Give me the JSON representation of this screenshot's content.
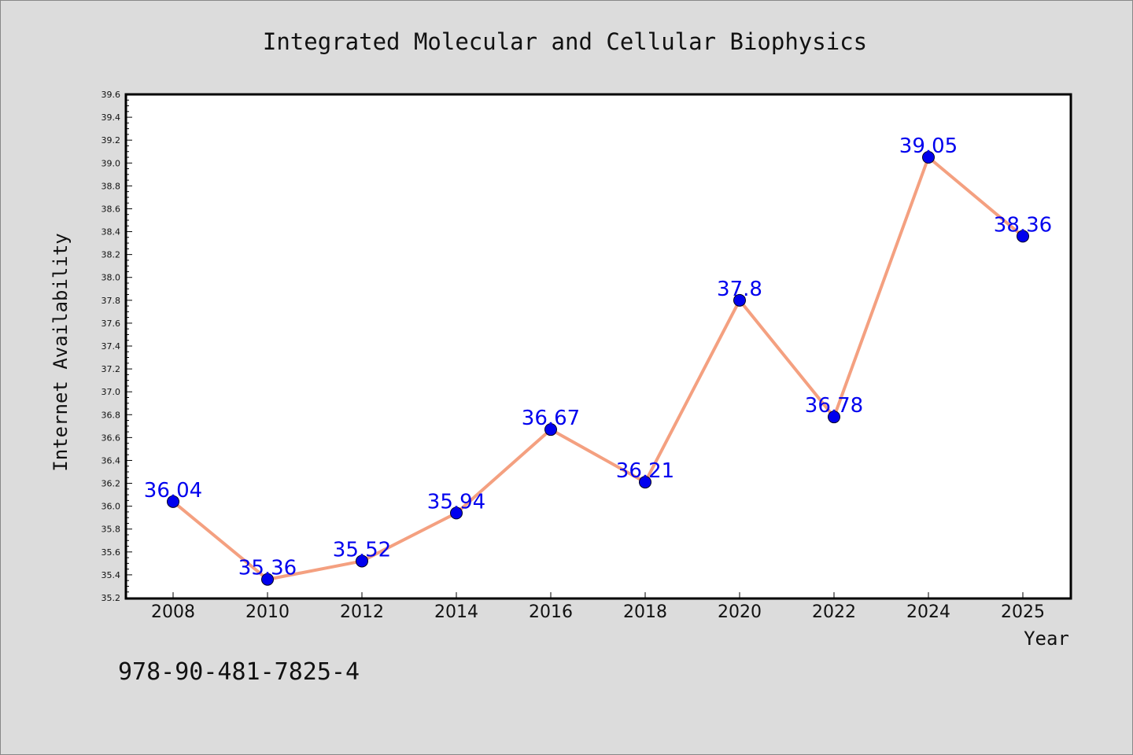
{
  "chart_data": {
    "type": "line",
    "title": "Integrated Molecular and Cellular Biophysics",
    "xlabel": "Year",
    "ylabel": "Internet Availability",
    "categories": [
      "2008",
      "2010",
      "2012",
      "2014",
      "2016",
      "2018",
      "2020",
      "2022",
      "2024",
      "2025"
    ],
    "values": [
      36.04,
      35.36,
      35.52,
      35.94,
      36.67,
      36.21,
      37.8,
      36.78,
      39.05,
      38.36
    ],
    "data_labels": [
      "36.04",
      "35.36",
      "35.52",
      "35.94",
      "36.67",
      "36.21",
      "37.8",
      "36.78",
      "39.05",
      "38.36"
    ],
    "ylim": [
      35.2,
      39.6
    ],
    "yticks": [
      "35.2",
      "35.4",
      "35.6",
      "35.8",
      "36.0",
      "36.2",
      "36.4",
      "36.6",
      "36.8",
      "37.0",
      "37.2",
      "37.4",
      "37.6",
      "37.8",
      "38.0",
      "38.2",
      "38.4",
      "38.6",
      "38.8",
      "39.0",
      "39.2",
      "39.4",
      "39.6"
    ],
    "grid": false,
    "line_color": "#f4a080",
    "marker_color": "#0000ee",
    "label_color": "#0000ee"
  },
  "footnote": "978-90-481-7825-4",
  "colors": {
    "background": "#dcdcdc",
    "plot_background": "#ffffff"
  }
}
